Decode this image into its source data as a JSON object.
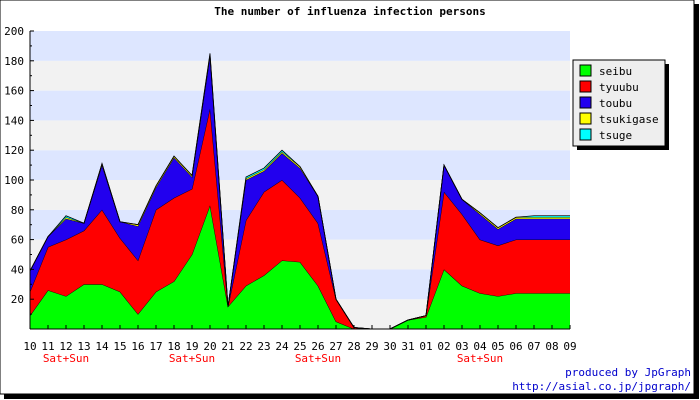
{
  "chart_data": {
    "type": "area",
    "stacked": true,
    "title": "The number of influenza infection persons",
    "xlabel": "",
    "ylabel": "",
    "ylim": [
      0,
      200
    ],
    "y_ticks": [
      20,
      40,
      60,
      80,
      100,
      120,
      140,
      160,
      180,
      200
    ],
    "categories": [
      "10",
      "11",
      "12",
      "13",
      "14",
      "15",
      "16",
      "17",
      "18",
      "19",
      "20",
      "21",
      "22",
      "23",
      "24",
      "25",
      "26",
      "27",
      "28",
      "29",
      "30",
      "31",
      "01",
      "02",
      "03",
      "04",
      "05",
      "06",
      "07",
      "08",
      "09"
    ],
    "weekend_label": "Sat+Sun",
    "weekend_marks": [
      {
        "category": "12",
        "label": "Sat+Sun"
      },
      {
        "category": "19",
        "label": "Sat+Sun"
      },
      {
        "category": "26",
        "label": "Sat+Sun"
      },
      {
        "category": "04",
        "label": "Sat+Sun"
      }
    ],
    "grid": true,
    "band_colors": [
      "#dde6ff",
      "#f2f2f2"
    ],
    "legend_position": "right",
    "series": [
      {
        "name": "seibu",
        "color": "#00ff00",
        "values": [
          9,
          26,
          22,
          30,
          30,
          25,
          10,
          25,
          32,
          50,
          83,
          15,
          29,
          36,
          46,
          45,
          29,
          5,
          0,
          0,
          0,
          6,
          8,
          40,
          29,
          24,
          22,
          24,
          24,
          24,
          24
        ]
      },
      {
        "name": "tyuubu",
        "color": "#ff0000",
        "values": [
          16,
          29,
          38,
          36,
          50,
          36,
          36,
          55,
          56,
          44,
          65,
          0,
          44,
          56,
          54,
          43,
          42,
          15,
          1,
          0,
          0,
          0,
          1,
          52,
          48,
          36,
          34,
          36,
          36,
          36,
          36
        ]
      },
      {
        "name": "toubu",
        "color": "#2200ee",
        "values": [
          14,
          7,
          14,
          5,
          30,
          11,
          23,
          15,
          27,
          8,
          35,
          0,
          27,
          14,
          18,
          20,
          18,
          0,
          0,
          0,
          0,
          0,
          0,
          18,
          10,
          17,
          11,
          14,
          14,
          14,
          14
        ]
      },
      {
        "name": "tsukigase",
        "color": "#ffff00",
        "values": [
          0,
          0,
          1,
          0,
          1,
          0,
          1,
          1,
          1,
          1,
          1,
          0,
          1,
          1,
          1,
          1,
          0,
          0,
          0,
          0,
          0,
          0,
          0,
          0,
          0,
          1,
          1,
          1,
          1,
          1,
          1
        ]
      },
      {
        "name": "tsuge",
        "color": "#00ffff",
        "values": [
          0,
          0,
          1,
          0,
          0,
          0,
          0,
          0,
          0,
          0,
          1,
          0,
          1,
          1,
          1,
          0,
          0,
          0,
          0,
          0,
          0,
          0,
          0,
          0,
          0,
          0,
          0,
          0,
          1,
          1,
          1
        ]
      }
    ],
    "credits": [
      "produced by JpGraph",
      "http://asial.co.jp/jpgraph/"
    ]
  }
}
